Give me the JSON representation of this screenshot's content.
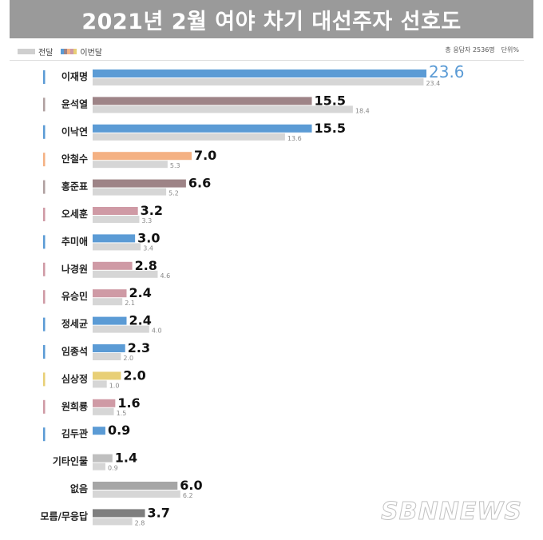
{
  "header": {
    "title": "2021년 2월 여야 차기 대선주자 선호도"
  },
  "legend": {
    "previous_label": "전달",
    "current_label": "이번달",
    "current_swatch_colors": [
      "#5b9bd5",
      "#9e8487",
      "#f4b183",
      "#cf9aa5",
      "#e8cf76"
    ]
  },
  "meta": {
    "respondents": "총 응답자 2536명",
    "unit": "단위%"
  },
  "watermark": "SBNNEWS",
  "chart_data": {
    "type": "bar",
    "orientation": "horizontal",
    "categories": [
      "이재명",
      "윤석열",
      "이낙연",
      "안철수",
      "홍준표",
      "오세훈",
      "추미애",
      "나경원",
      "유승민",
      "정세균",
      "임종석",
      "심상정",
      "원희룡",
      "김두관",
      "기타인물",
      "없음",
      "모름/무응답"
    ],
    "series": [
      {
        "name": "이번달",
        "values": [
          23.6,
          15.5,
          15.5,
          7.0,
          6.6,
          3.2,
          3.0,
          2.8,
          2.4,
          2.4,
          2.3,
          2.0,
          1.6,
          0.9,
          1.4,
          6.0,
          3.7
        ],
        "labels": [
          "23.6",
          "15.5",
          "15.5",
          "7.0",
          "6.6",
          "3.2",
          "3.0",
          "2.8",
          "2.4",
          "2.4",
          "2.3",
          "2.0",
          "1.6",
          "0.9",
          "1.4",
          "6.0",
          "3.7"
        ],
        "colors": [
          "#5b9bd5",
          "#9e8487",
          "#5b9bd5",
          "#f4b183",
          "#9e8487",
          "#cf9aa5",
          "#5b9bd5",
          "#cf9aa5",
          "#cf9aa5",
          "#5b9bd5",
          "#5b9bd5",
          "#e8cf76",
          "#cf9aa5",
          "#5b9bd5",
          "#bfbfbf",
          "#a6a6a6",
          "#7f7f7f"
        ]
      },
      {
        "name": "전달",
        "values": [
          23.4,
          18.4,
          13.6,
          5.3,
          5.2,
          3.3,
          3.4,
          4.6,
          2.1,
          4.0,
          2.0,
          1.0,
          1.5,
          null,
          0.9,
          6.2,
          2.8
        ],
        "labels": [
          "23.4",
          "18.4",
          "13.6",
          "5.3",
          "5.2",
          "3.3",
          "3.4",
          "4.6",
          "2.1",
          "4.0",
          "2.0",
          "1.0",
          "1.5",
          "",
          "0.9",
          "6.2",
          "2.8"
        ],
        "color": "#d6d6d6"
      }
    ],
    "category_marker_colors": [
      "#5b9bd5",
      "#b0a0a0",
      "#5b9bd5",
      "#f4b183",
      "#b0a0a0",
      "#cf9aa5",
      "#5b9bd5",
      "#cf9aa5",
      "#cf9aa5",
      "#5b9bd5",
      "#5b9bd5",
      "#e8cf76",
      "#cf9aa5",
      "#5b9bd5",
      "",
      "",
      ""
    ],
    "highlight_color": "#5b9bd5",
    "xlim": [
      0,
      25
    ],
    "grid": false,
    "legend_position": "top-left"
  }
}
